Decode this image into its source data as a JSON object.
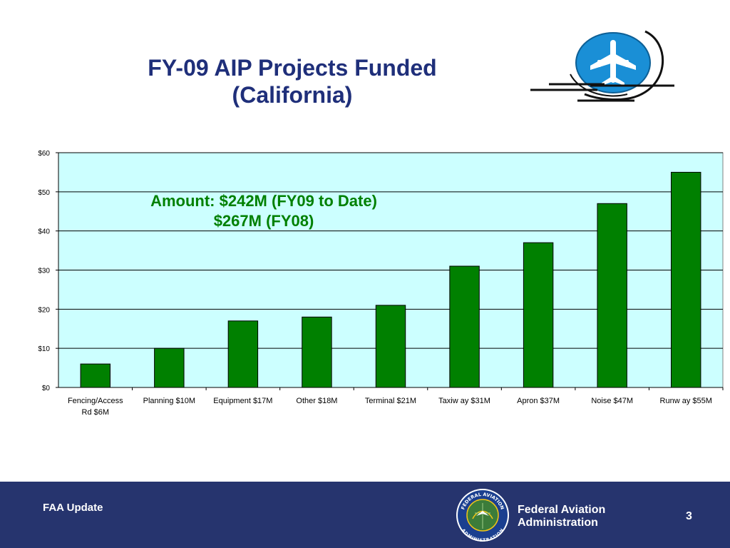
{
  "slide": {
    "title_line1": "FY-09 AIP Projects Funded",
    "title_line2": "(California)"
  },
  "annotation": {
    "line1": "Amount: $242M (FY09 to Date)",
    "line2": "$267M (FY08)"
  },
  "footer": {
    "left_text": "FAA Update",
    "agency_line1": "Federal Aviation",
    "agency_line2": "Administration",
    "page_number": "3",
    "seal_text": "FEDERAL AVIATION ADMINISTRATION"
  },
  "colors": {
    "title": "#1f2f7a",
    "bar": "#008000",
    "plot_bg": "#ccffff",
    "footer_bg": "#26346e",
    "annotation": "#008000"
  },
  "chart_data": {
    "type": "bar",
    "categories": [
      [
        "Fencing/Access",
        "Rd $6M"
      ],
      [
        "Planning $10M"
      ],
      [
        "Equipment $17M"
      ],
      [
        "Other $18M"
      ],
      [
        "Terminal $21M"
      ],
      [
        "Taxiw ay $31M"
      ],
      [
        "Apron $37M"
      ],
      [
        "Noise $47M"
      ],
      [
        "Runw ay $55M"
      ]
    ],
    "values": [
      6,
      10,
      17,
      18,
      21,
      31,
      37,
      47,
      55
    ],
    "yticks": [
      "$0",
      "$10",
      "$20",
      "$30",
      "$40",
      "$50",
      "$60"
    ],
    "ylim": [
      0,
      60
    ],
    "grid": true,
    "legend": "none"
  }
}
